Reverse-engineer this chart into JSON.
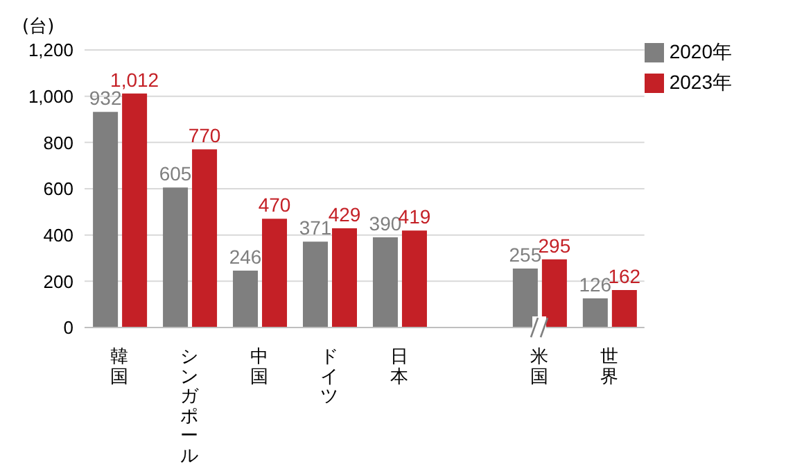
{
  "chart_data": {
    "type": "bar",
    "ylabel": "(台)",
    "categories": [
      "韓国",
      "シンガポール",
      "中国",
      "ドイツ",
      "日本",
      null,
      "米国",
      "世界"
    ],
    "series": [
      {
        "name": "2020年",
        "color": "#7f7f7f",
        "values": [
          932,
          605,
          246,
          371,
          390,
          null,
          255,
          126
        ],
        "value_labels": [
          "932",
          "605",
          "246",
          "371",
          "390",
          null,
          "255",
          "126"
        ]
      },
      {
        "name": "2023年",
        "color": "#c42026",
        "values": [
          1012,
          770,
          470,
          429,
          419,
          null,
          295,
          162
        ],
        "value_labels": [
          "1,012",
          "770",
          "470",
          "429",
          "419",
          null,
          "295",
          "162"
        ]
      }
    ],
    "ylim": [
      0,
      1200
    ],
    "yticks": [
      0,
      200,
      400,
      600,
      800,
      {
        "value": 1000,
        "label": "1,000"
      },
      {
        "value": 1200,
        "label": "1,200"
      }
    ],
    "grid": "y",
    "legend": "top right"
  }
}
